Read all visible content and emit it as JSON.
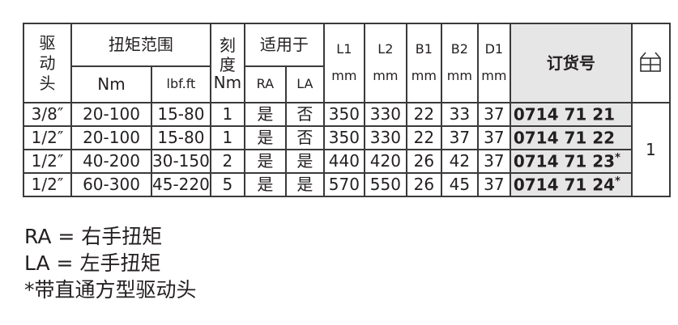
{
  "header": {
    "drive": "驱\n动\n头",
    "torque_range": "扭矩范围",
    "nm": "Nm",
    "lbfft": "lbf.ft",
    "scale": "刻\n度",
    "scale_unit": "Nm",
    "applicable": "适用于",
    "ra": "RA",
    "la": "LA",
    "dims": [
      {
        "name": "L1",
        "unit": "mm"
      },
      {
        "name": "L2",
        "unit": "mm"
      },
      {
        "name": "B1",
        "unit": "mm"
      },
      {
        "name": "B2",
        "unit": "mm"
      },
      {
        "name": "D1",
        "unit": "mm"
      }
    ],
    "order_no": "订货号",
    "pack_icon": "package-box-icon"
  },
  "rows": [
    {
      "drive": "3/8″",
      "nm": "20-100",
      "lbf": "15-80",
      "scale": "1",
      "ra": "是",
      "la": "否",
      "l1": "350",
      "l2": "330",
      "b1": "22",
      "b2": "33",
      "d1": "37",
      "order": "0714 71 21",
      "star": ""
    },
    {
      "drive": "1/2″",
      "nm": "20-100",
      "lbf": "15-80",
      "scale": "1",
      "ra": "是",
      "la": "否",
      "l1": "350",
      "l2": "330",
      "b1": "22",
      "b2": "37",
      "d1": "37",
      "order": "0714 71 22",
      "star": ""
    },
    {
      "drive": "1/2″",
      "nm": "40-200",
      "lbf": "30-150",
      "scale": "2",
      "ra": "是",
      "la": "是",
      "l1": "440",
      "l2": "420",
      "b1": "26",
      "b2": "42",
      "d1": "37",
      "order": "0714 71 23",
      "star": "*"
    },
    {
      "drive": "1/2″",
      "nm": "60-300",
      "lbf": "45-220",
      "scale": "5",
      "ra": "是",
      "la": "是",
      "l1": "570",
      "l2": "550",
      "b1": "26",
      "b2": "45",
      "d1": "37",
      "order": "0714 71 24",
      "star": "*"
    }
  ],
  "pack_qty": "1",
  "notes": [
    "RA = 右手扭矩",
    "LA = 左手扭矩",
    "*带直通方型驱动头"
  ]
}
